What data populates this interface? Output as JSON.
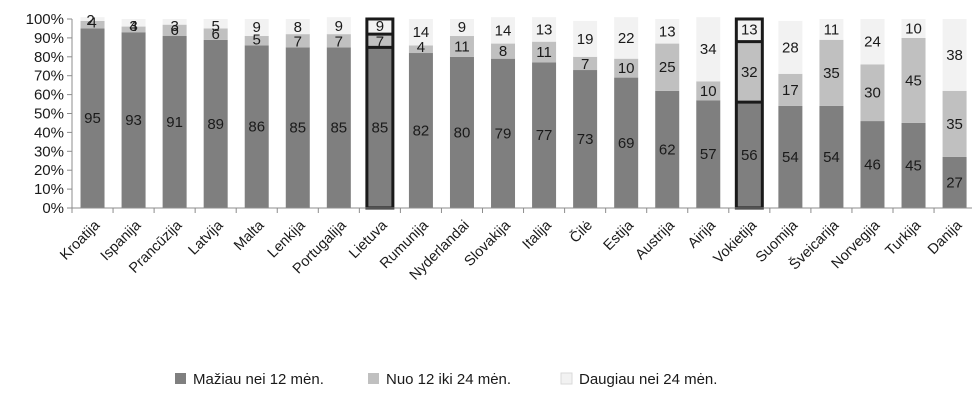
{
  "chart_data": {
    "type": "bar",
    "stacked": true,
    "categories": [
      "Kroatija",
      "Ispanija",
      "Prancūzija",
      "Latvija",
      "Malta",
      "Lenkija",
      "Portugalija",
      "Lietuva",
      "Rumunija",
      "Nyderlandai",
      "Slovakija",
      "Italija",
      "Čilė",
      "Estija",
      "Austrija",
      "Airija",
      "Vokietija",
      "Suomija",
      "Šveicarija",
      "Norvegija",
      "Turkija",
      "Danija"
    ],
    "series": [
      {
        "name": "Mažiau nei 12 mėn.",
        "color": "#7f7f7f",
        "values": [
          95,
          93,
          91,
          89,
          86,
          85,
          85,
          85,
          82,
          80,
          79,
          77,
          73,
          69,
          62,
          57,
          56,
          54,
          54,
          46,
          45,
          27
        ]
      },
      {
        "name": "Nuo 12 iki 24 mėn.",
        "color": "#c0c0c0",
        "values": [
          4,
          3,
          6,
          6,
          5,
          7,
          7,
          7,
          4,
          11,
          8,
          11,
          7,
          10,
          25,
          10,
          32,
          17,
          35,
          30,
          45,
          35
        ]
      },
      {
        "name": "Daugiau nei 24 mėn.",
        "color": "#f2f2f2",
        "values": [
          2,
          4,
          3,
          5,
          9,
          8,
          9,
          9,
          14,
          9,
          14,
          13,
          19,
          22,
          13,
          34,
          13,
          28,
          11,
          24,
          10,
          38
        ]
      }
    ],
    "highlighted": [
      "Lietuva",
      "Vokietija"
    ],
    "y_ticks": [
      "0%",
      "10%",
      "20%",
      "30%",
      "40%",
      "50%",
      "60%",
      "70%",
      "80%",
      "90%",
      "100%"
    ],
    "ylim": [
      0,
      100
    ],
    "legend_position": "bottom",
    "title": "",
    "xlabel": "",
    "ylabel": ""
  }
}
